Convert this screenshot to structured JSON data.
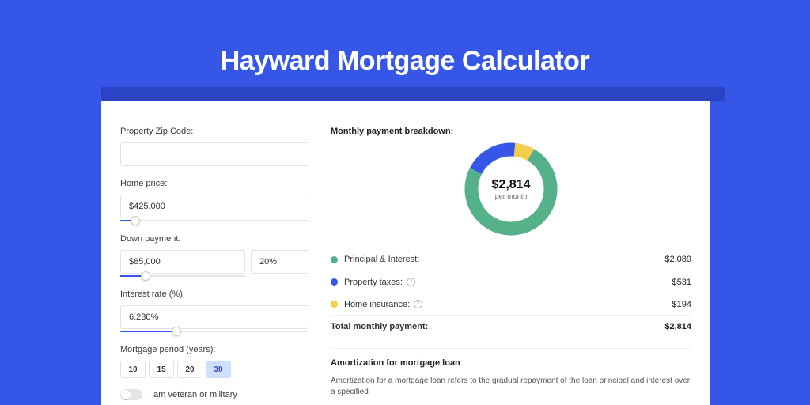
{
  "page": {
    "title": "Hayward Mortgage Calculator",
    "colors": {
      "bg": "#3656e8",
      "shadow": "#2a44c5",
      "card": "#ffffff"
    }
  },
  "form": {
    "zip": {
      "label": "Property Zip Code:",
      "value": ""
    },
    "home_price": {
      "label": "Home price:",
      "value": "$425,000",
      "slider_pct": 8
    },
    "down_payment": {
      "label": "Down payment:",
      "value": "$85,000",
      "pct": "20%",
      "slider_pct": 20
    },
    "interest_rate": {
      "label": "Interest rate (%):",
      "value": "6.230%",
      "slider_pct": 30
    },
    "period": {
      "label": "Mortgage period (years):",
      "options": [
        "10",
        "15",
        "20",
        "30"
      ],
      "selected": "30"
    },
    "veteran": {
      "label": "I am veteran or military",
      "on": false
    }
  },
  "breakdown": {
    "title": "Monthly payment breakdown:",
    "center_amount": "$2,814",
    "center_sub": "per month",
    "items": [
      {
        "label": "Principal & Interest:",
        "value": "$2,089",
        "color": "#55b189",
        "pct": 74.2,
        "info": false
      },
      {
        "label": "Property taxes:",
        "value": "$531",
        "color": "#3656e8",
        "pct": 18.9,
        "info": true
      },
      {
        "label": "Home insurance:",
        "value": "$194",
        "color": "#f2ce4a",
        "pct": 6.9,
        "info": true
      }
    ],
    "total": {
      "label": "Total monthly payment:",
      "value": "$2,814"
    },
    "donut": {
      "ring_thickness": 17,
      "radius": 50,
      "bg": "#ffffff",
      "start_angle_deg": -60
    }
  },
  "amortization": {
    "title": "Amortization for mortgage loan",
    "text": "Amortization for a mortgage loan refers to the gradual repayment of the loan principal and interest over a specified"
  }
}
